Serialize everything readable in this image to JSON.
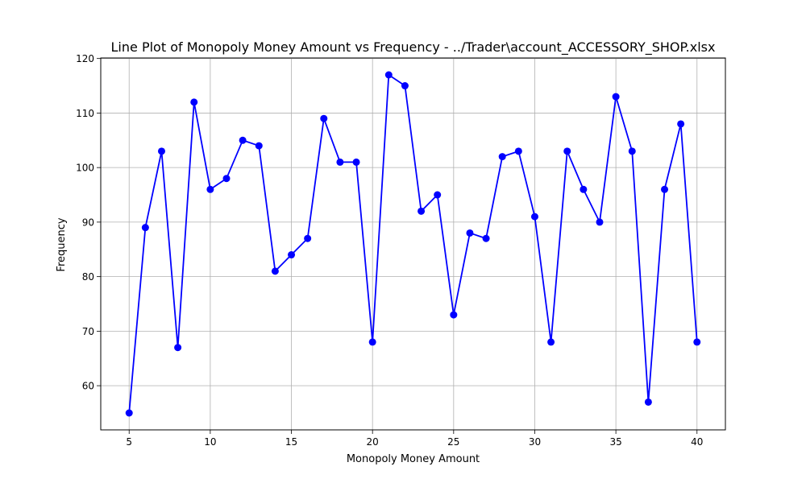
{
  "chart_data": {
    "type": "line",
    "title": "Line Plot of Monopoly Money Amount vs Frequency  -  ../Trader\\account_ACCESSORY_SHOP.xlsx",
    "xlabel": "Monopoly Money Amount",
    "ylabel": "Frequency",
    "xlim": [
      3.25,
      41.75
    ],
    "ylim": [
      51.9,
      120.1
    ],
    "xticks": [
      5,
      10,
      15,
      20,
      25,
      30,
      35,
      40
    ],
    "yticks": [
      60,
      70,
      80,
      90,
      100,
      110,
      120
    ],
    "grid": true,
    "series": [
      {
        "x": [
          5,
          6,
          7,
          8,
          9,
          10,
          11,
          12,
          13,
          14,
          15,
          16,
          17,
          18,
          19,
          20,
          21,
          22,
          23,
          24,
          25,
          26,
          27,
          28,
          29,
          30,
          31,
          32,
          33,
          34,
          35,
          36,
          37,
          38,
          39,
          40
        ],
        "values": [
          55,
          89,
          103,
          67,
          112,
          96,
          98,
          105,
          104,
          81,
          84,
          87,
          109,
          101,
          101,
          68,
          117,
          115,
          92,
          95,
          73,
          88,
          87,
          102,
          103,
          91,
          68,
          103,
          96,
          90,
          113,
          103,
          57,
          96,
          108,
          68
        ],
        "color": "#0000ff",
        "marker": "circle"
      }
    ]
  }
}
